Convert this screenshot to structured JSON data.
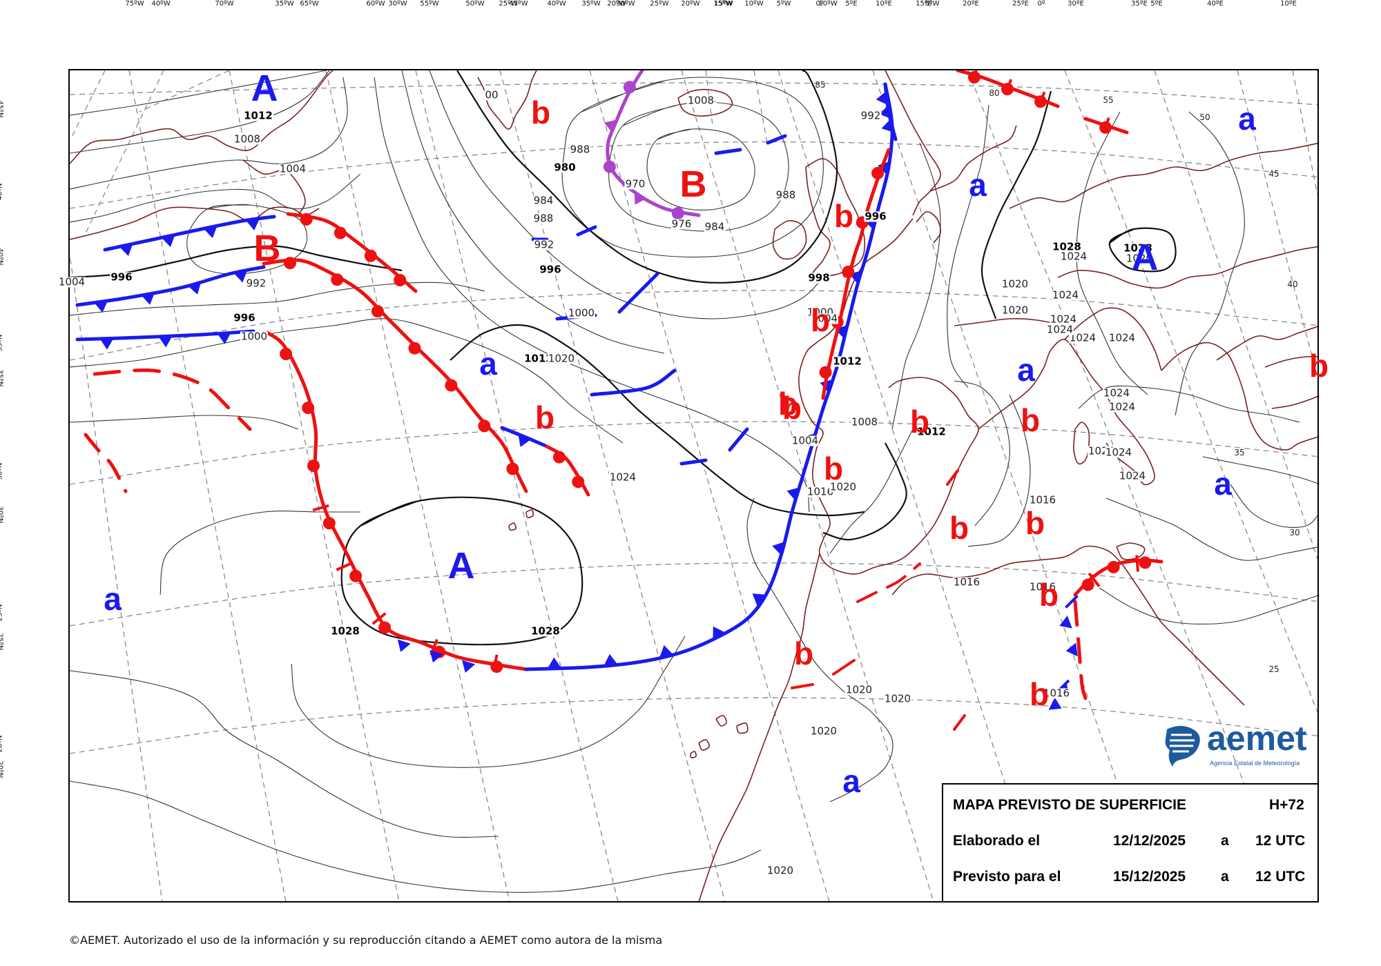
{
  "map": {
    "top_longitudes": [
      "75ºW",
      "70ºW",
      "65ºW",
      "60ºW",
      "55ºW",
      "50ºW",
      "45ºW",
      "40ºW",
      "35ºW",
      "30ºW",
      "25ºW",
      "20ºW",
      "15ºW",
      "10ºW",
      "5ºW",
      "0º",
      "5ºE",
      "10ºE",
      "15ºE",
      "20ºE",
      "25ºE",
      "30ºE",
      "35ºE",
      "40ºE"
    ],
    "bottom_longitudes": [
      "40ºW",
      "35ºW",
      "30ºW",
      "25ºW",
      "20ºW",
      "15ºW",
      "10ºW",
      "5ºW",
      "0º",
      "5ºE",
      "10ºE"
    ],
    "left_latitudes": [
      "40ºN",
      "35ºN",
      "30ºN",
      "25ºN",
      "20ºN"
    ],
    "right_latitudes": [
      "45ºN",
      "40ºN",
      "35ºN",
      "30ºN",
      "25ºN",
      "20ºN"
    ],
    "grid_labels_inner": [
      "85",
      "80",
      "55",
      "50",
      "45",
      "40",
      "35",
      "30",
      "25"
    ],
    "pressure_centers": [
      {
        "label": "A",
        "kind": "high"
      },
      {
        "label": "A",
        "kind": "high"
      },
      {
        "label": "A",
        "kind": "high"
      },
      {
        "label": "B",
        "kind": "low"
      },
      {
        "label": "B",
        "kind": "low"
      },
      {
        "label": "a",
        "kind": "high"
      },
      {
        "label": "a",
        "kind": "high"
      },
      {
        "label": "a",
        "kind": "high"
      },
      {
        "label": "a",
        "kind": "high"
      },
      {
        "label": "a",
        "kind": "high"
      },
      {
        "label": "a",
        "kind": "high"
      },
      {
        "label": "a",
        "kind": "high"
      },
      {
        "label": "b",
        "kind": "low"
      },
      {
        "label": "b",
        "kind": "low"
      },
      {
        "label": "b",
        "kind": "low"
      },
      {
        "label": "b",
        "kind": "low"
      },
      {
        "label": "b",
        "kind": "low"
      },
      {
        "label": "b",
        "kind": "low"
      },
      {
        "label": "b",
        "kind": "low"
      },
      {
        "label": "b",
        "kind": "low"
      },
      {
        "label": "b",
        "kind": "low"
      },
      {
        "label": "b",
        "kind": "low"
      },
      {
        "label": "b",
        "kind": "low"
      },
      {
        "label": "b",
        "kind": "low"
      },
      {
        "label": "b",
        "kind": "low"
      },
      {
        "label": "b",
        "kind": "low"
      },
      {
        "label": "b",
        "kind": "low"
      }
    ],
    "isobar_labels": [
      {
        "text": "1012",
        "bold": true
      },
      {
        "text": "1008",
        "bold": false
      },
      {
        "text": "1004",
        "bold": false
      },
      {
        "text": "996",
        "bold": true
      },
      {
        "text": "992",
        "bold": false
      },
      {
        "text": "996",
        "bold": true
      },
      {
        "text": "1000",
        "bold": false
      },
      {
        "text": "1004",
        "bold": false
      },
      {
        "text": "00",
        "bold": false
      },
      {
        "text": "988",
        "bold": false
      },
      {
        "text": "980",
        "bold": true
      },
      {
        "text": "984",
        "bold": false
      },
      {
        "text": "988",
        "bold": false
      },
      {
        "text": "992",
        "bold": false
      },
      {
        "text": "996",
        "bold": true
      },
      {
        "text": "1000",
        "bold": false
      },
      {
        "text": "1004",
        "bold": false
      },
      {
        "text": "1008",
        "bold": false
      },
      {
        "text": "970",
        "bold": false
      },
      {
        "text": "976",
        "bold": false
      },
      {
        "text": "984",
        "bold": false
      },
      {
        "text": "988",
        "bold": false
      },
      {
        "text": "992",
        "bold": false
      },
      {
        "text": "996",
        "bold": true
      },
      {
        "text": "998",
        "bold": true
      },
      {
        "text": "1000",
        "bold": false
      },
      {
        "text": "1004",
        "bold": false
      },
      {
        "text": "1012",
        "bold": true
      },
      {
        "text": "1016",
        "bold": false
      },
      {
        "text": "1020",
        "bold": false
      },
      {
        "text": "1008",
        "bold": false
      },
      {
        "text": "1012",
        "bold": true
      },
      {
        "text": "1004",
        "bold": false
      },
      {
        "text": "1012",
        "bold": true
      },
      {
        "text": "1020",
        "bold": false
      },
      {
        "text": "1024",
        "bold": false
      },
      {
        "text": "1028",
        "bold": true
      },
      {
        "text": "1024",
        "bold": false
      },
      {
        "text": "1020",
        "bold": false
      },
      {
        "text": "1024",
        "bold": false
      },
      {
        "text": "1024",
        "bold": false
      },
      {
        "text": "1024",
        "bold": false
      },
      {
        "text": "1020",
        "bold": false
      },
      {
        "text": "1024",
        "bold": false
      },
      {
        "text": "1024",
        "bold": false
      },
      {
        "text": "1024",
        "bold": false
      },
      {
        "text": "1024",
        "bold": false
      },
      {
        "text": "1024",
        "bold": false
      },
      {
        "text": "1016",
        "bold": false
      },
      {
        "text": "1016",
        "bold": false
      },
      {
        "text": "1016",
        "bold": false
      },
      {
        "text": "1016",
        "bold": false
      },
      {
        "text": "1020",
        "bold": false
      },
      {
        "text": "1020",
        "bold": false
      },
      {
        "text": "1020",
        "bold": false
      },
      {
        "text": "1020",
        "bold": false
      },
      {
        "text": "1024",
        "bold": false
      },
      {
        "text": "1024",
        "bold": false
      },
      {
        "text": "1028",
        "bold": true
      },
      {
        "text": "1028",
        "bold": true
      },
      {
        "text": "1028",
        "bold": true
      },
      {
        "text": "1020",
        "bold": false
      }
    ],
    "colors": {
      "isobar": "#333333",
      "grid": "#8a8a8a",
      "coast": "#7a1f1f",
      "cold_front": "#1a1aee",
      "warm_front": "#ee1111",
      "occluded_front": "#aa44cc",
      "high_label": "#1a1aee",
      "low_label": "#ee1111"
    }
  },
  "info": {
    "title": "MAPA PREVISTO DE SUPERFICIE",
    "step": "H+72",
    "made_label": "Elaborado el",
    "made_date": "12/12/2025",
    "made_a": "a",
    "made_time": "12 UTC",
    "valid_label": "Previsto para el",
    "valid_date": "15/12/2025",
    "valid_a": "a",
    "valid_time": "12 UTC"
  },
  "logo": {
    "word": "aemet",
    "subtitle": "Agencia Estatal de Meteorología"
  },
  "copyright": "©AEMET. Autorizado el uso de la información y su reproducción citando a AEMET como autora de la misma"
}
